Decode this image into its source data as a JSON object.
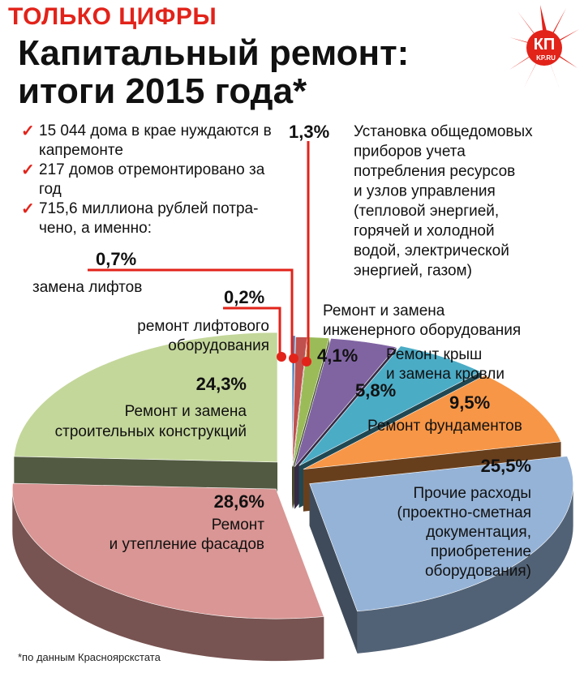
{
  "header": {
    "kicker": "ТОЛЬКО ЦИФРЫ",
    "title_line1": "Капитальный ремонт:",
    "title_line2": "итоги 2015 года*",
    "logo_text": "КП",
    "logo_subtext": "KP.RU"
  },
  "facts": [
    {
      "check": "✓",
      "text": "15 044 дома в крае нуждаются в капремонте"
    },
    {
      "check": "✓",
      "text": "217 домов отремонтировано за год"
    },
    {
      "check": "✓",
      "text": "715,6 миллиона рублей потра-чено, а именно:"
    }
  ],
  "footnote": "*по данным Красноярскстата",
  "colors": {
    "accent": "#e2231a",
    "leader": "#e2231a"
  },
  "chart_data": {
    "type": "pie",
    "title": "Капитальный ремонт: итоги 2015 года*",
    "unit": "%",
    "slices": [
      {
        "label": "ремонт лифтового оборудования",
        "value": 0.2,
        "value_label": "0,2%",
        "color": "#4f81bd"
      },
      {
        "label": "замена лифтов",
        "value": 0.7,
        "value_label": "0,7%",
        "color": "#c0504d"
      },
      {
        "label": "Установка общедомовых приборов учета потребления ресурсов и узлов управления (тепловой энергией, горячей и холодной водой, электрической энергией, газом)",
        "value": 1.3,
        "value_label": "1,3%",
        "color": "#9bbb59"
      },
      {
        "label": "Ремонт и замена инженерного оборудования",
        "value": 4.1,
        "value_label": "4,1%",
        "color": "#8064a2"
      },
      {
        "label": "Ремонт крыш и замена кровли",
        "value": 5.8,
        "value_label": "5,8%",
        "color": "#4bacc6"
      },
      {
        "label": "Ремонт фундаментов",
        "value": 9.5,
        "value_label": "9,5%",
        "color": "#f79646"
      },
      {
        "label": "Прочие расходы (проектно-сметная документация, приобретение оборудования)",
        "value": 25.5,
        "value_label": "25,5%",
        "color": "#95b3d7"
      },
      {
        "label": "Ремонт и утепление фасадов",
        "value": 28.6,
        "value_label": "28,6%",
        "color": "#d99694"
      },
      {
        "label": "Ремонт и замена строительных конструкций",
        "value": 24.3,
        "value_label": "24,3%",
        "color": "#c4d79b"
      }
    ],
    "labels_display": {
      "lift_equipment": [
        "ремонт лифтового",
        "оборудования"
      ],
      "lift_replacement": [
        "замена лифтов"
      ],
      "meters": [
        "Установка общедомовых",
        "приборов учета",
        "потребления ресурсов",
        "и узлов управления",
        "(тепловой энергией,",
        "горячей и холодной",
        "водой, электрической",
        "энергией, газом)"
      ],
      "engineering": [
        "Ремонт и замена",
        "инженерного оборудования"
      ],
      "roofs": [
        "Ремонт крыш",
        "и замена кровли"
      ],
      "foundations": [
        "Ремонт фундаментов"
      ],
      "other": [
        "Прочие расходы",
        "(проектно-сметная",
        "документация,",
        "приобретение",
        "оборудования)"
      ],
      "facades": [
        "Ремонт",
        "и утепление фасадов"
      ],
      "structures": [
        "Ремонт и замена",
        "строительных конструкций"
      ]
    }
  }
}
